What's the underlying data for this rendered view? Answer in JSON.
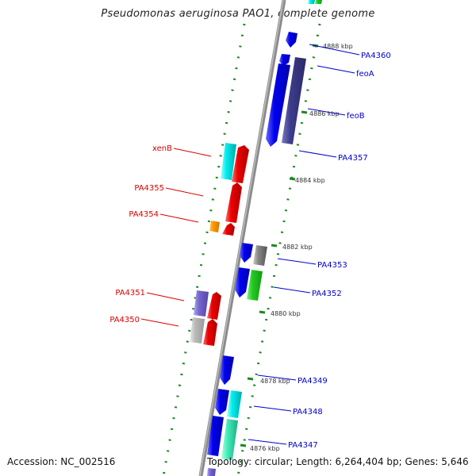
{
  "title": "Pseudomonas aeruginosa PAO1, complete genome",
  "footer": {
    "accession": "Accession: NC_002516",
    "summary": "Topology: circular; Length: 6,264,404 bp; Genes: 5,646"
  },
  "colors": {
    "backbone": "#8a8a8a",
    "tick": "#1a8a1a",
    "forward_label": "#0000cc",
    "reverse_label": "#dd0000"
  },
  "kbp_marks": [
    "4888 kbp",
    "4886 kbp",
    "4884 kbp",
    "4882 kbp",
    "4880 kbp",
    "4878 kbp",
    "4876 kbp"
  ],
  "genes_forward": [
    {
      "name": "PA4360",
      "color": "#0000ee"
    },
    {
      "name": "feoA",
      "color": "#0000ee"
    },
    {
      "name": "feoB",
      "color": "#3c3c8c"
    },
    {
      "name": "PA4357",
      "color": "#0000ee"
    },
    {
      "name": "PA4353",
      "color": "#0000ee"
    },
    {
      "name": "PA4352",
      "color": "#0000ee"
    },
    {
      "name": "PA4349",
      "color": "#0000ee"
    },
    {
      "name": "PA4348",
      "color": "#0000ee"
    },
    {
      "name": "PA4347",
      "color": "#0000ee"
    }
  ],
  "genes_reverse": [
    {
      "name": "xenB",
      "color": "#ee0000"
    },
    {
      "name": "PA4355",
      "color": "#ee0000"
    },
    {
      "name": "PA4354",
      "color": "#ee0000"
    },
    {
      "name": "PA4351",
      "color": "#ee0000"
    },
    {
      "name": "PA4350",
      "color": "#ee0000"
    }
  ]
}
